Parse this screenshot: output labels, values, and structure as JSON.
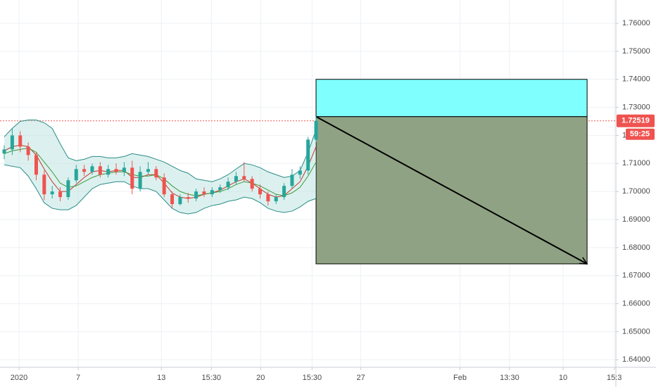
{
  "chart_data": {
    "type": "candlestick",
    "x": [
      0,
      1,
      2,
      3,
      4,
      5,
      6,
      7,
      8,
      9,
      10,
      11,
      12,
      13,
      14,
      15,
      16,
      17,
      18,
      19,
      20,
      21,
      22,
      23,
      24,
      25,
      26,
      27,
      28,
      29,
      30,
      31,
      32,
      33,
      34,
      35,
      36,
      37,
      38,
      39
    ],
    "open": [
      1.7135,
      1.715,
      1.72,
      1.716,
      1.713,
      1.706,
      1.699,
      1.7,
      1.698,
      1.704,
      1.708,
      1.707,
      1.709,
      1.706,
      1.708,
      1.707,
      1.7085,
      1.701,
      1.707,
      1.708,
      1.705,
      1.699,
      1.6955,
      1.698,
      1.6975,
      1.7,
      1.699,
      1.7005,
      1.7015,
      1.7035,
      1.7055,
      1.7045,
      1.701,
      1.699,
      1.6965,
      1.698,
      1.702,
      1.706,
      1.7075,
      1.7185
    ],
    "high": [
      1.7165,
      1.7225,
      1.7215,
      1.7175,
      1.714,
      1.7075,
      1.702,
      1.7015,
      1.705,
      1.7095,
      1.7095,
      1.71,
      1.7105,
      1.7095,
      1.71,
      1.7105,
      1.711,
      1.709,
      1.7105,
      1.709,
      1.7065,
      1.7,
      1.699,
      1.6995,
      1.701,
      1.7015,
      1.7015,
      1.7025,
      1.705,
      1.707,
      1.7105,
      1.7055,
      1.7025,
      1.7,
      1.699,
      1.703,
      1.708,
      1.709,
      1.7195,
      1.7268
    ],
    "low": [
      1.7115,
      1.713,
      1.714,
      1.711,
      1.704,
      1.697,
      1.6975,
      1.6965,
      1.697,
      1.703,
      1.7055,
      1.706,
      1.705,
      1.705,
      1.706,
      1.7055,
      1.699,
      1.7,
      1.706,
      1.704,
      1.698,
      1.694,
      1.695,
      1.696,
      1.6965,
      1.698,
      1.698,
      1.6995,
      1.7005,
      1.7025,
      1.7035,
      1.7,
      1.6975,
      1.695,
      1.6955,
      1.697,
      1.701,
      1.7045,
      1.706,
      1.7175
    ],
    "close": [
      1.715,
      1.72,
      1.716,
      1.713,
      1.706,
      1.699,
      1.7,
      1.698,
      1.704,
      1.708,
      1.707,
      1.709,
      1.706,
      1.708,
      1.707,
      1.7085,
      1.701,
      1.707,
      1.708,
      1.705,
      1.699,
      1.6955,
      1.698,
      1.6975,
      1.7,
      1.699,
      1.7005,
      1.7015,
      1.7035,
      1.7055,
      1.7045,
      1.701,
      1.699,
      1.6965,
      1.698,
      1.702,
      1.706,
      1.7075,
      1.7185,
      1.72519
    ],
    "up_color": "#26a69a",
    "down_color": "#ef5350",
    "band_fill": "#b2dfdb",
    "bands": [
      {
        "color": "#2a8c87",
        "values": [
          1.7195,
          1.7225,
          1.725,
          1.7255,
          1.7255,
          1.7245,
          1.7225,
          1.717,
          1.712,
          1.711,
          1.7115,
          1.7125,
          1.7125,
          1.712,
          1.712,
          1.7125,
          1.7135,
          1.713,
          1.7125,
          1.7115,
          1.7105,
          1.709,
          1.7075,
          1.7065,
          1.7045,
          1.704,
          1.7035,
          1.7045,
          1.706,
          1.708,
          1.71,
          1.7095,
          1.7085,
          1.707,
          1.706,
          1.705,
          1.7055,
          1.7075,
          1.714,
          1.722
        ]
      },
      {
        "color": "#2a8c87",
        "values": [
          1.7095,
          1.709,
          1.7085,
          1.7055,
          1.701,
          1.696,
          1.694,
          1.6935,
          1.6935,
          1.695,
          1.698,
          1.701,
          1.7025,
          1.703,
          1.7035,
          1.7035,
          1.702,
          1.701,
          1.701,
          1.7,
          1.697,
          1.694,
          1.6925,
          1.692,
          1.6925,
          1.694,
          1.695,
          1.6955,
          1.6965,
          1.697,
          1.698,
          1.6975,
          1.696,
          1.694,
          1.693,
          1.6925,
          1.693,
          1.6945,
          1.6965,
          1.6975
        ]
      }
    ],
    "indicators": [
      {
        "color": "#c0392b",
        "values": [
          1.7145,
          1.716,
          1.7165,
          1.716,
          1.713,
          1.708,
          1.7035,
          1.7,
          1.7,
          1.7025,
          1.705,
          1.707,
          1.7075,
          1.707,
          1.7075,
          1.7075,
          1.705,
          1.705,
          1.706,
          1.706,
          1.703,
          1.6995,
          1.698,
          1.6975,
          1.698,
          1.699,
          1.6995,
          1.7005,
          1.702,
          1.7035,
          1.7045,
          1.703,
          1.701,
          1.699,
          1.698,
          1.6985,
          1.701,
          1.7035,
          1.709,
          1.716
        ]
      },
      {
        "color": "#3c9a3c",
        "values": [
          1.7135,
          1.7145,
          1.715,
          1.7155,
          1.714,
          1.7105,
          1.707,
          1.703,
          1.7015,
          1.702,
          1.7035,
          1.705,
          1.706,
          1.7065,
          1.707,
          1.707,
          1.706,
          1.7055,
          1.7055,
          1.706,
          1.7045,
          1.702,
          1.7,
          1.699,
          1.6985,
          1.699,
          1.6995,
          1.7,
          1.701,
          1.7025,
          1.7035,
          1.703,
          1.702,
          1.7005,
          1.699,
          1.6985,
          1.6995,
          1.7015,
          1.7055,
          1.7105
        ]
      }
    ],
    "xlim": [
      -0.53,
      76.5
    ],
    "xticks": [
      {
        "value": 1.85,
        "label": "2020"
      },
      {
        "value": 9.25,
        "label": "7"
      },
      {
        "value": 19.65,
        "label": "13"
      },
      {
        "value": 25.9,
        "label": "15:30"
      },
      {
        "value": 32.07,
        "label": "20"
      },
      {
        "value": 38.5,
        "label": "15:30"
      },
      {
        "value": 44.6,
        "label": "27"
      },
      {
        "value": 57.0,
        "label": "Feb"
      },
      {
        "value": 63.2,
        "label": "13:30"
      },
      {
        "value": 69.9,
        "label": "10"
      },
      {
        "value": 76.3,
        "label": "15:3"
      }
    ],
    "ylim": [
      1.63731,
      1.76829
    ],
    "yticks": [
      {
        "value": 1.76,
        "label": "1.76000"
      },
      {
        "value": 1.75,
        "label": "1.75000"
      },
      {
        "value": 1.74,
        "label": "1.74000"
      },
      {
        "value": 1.73,
        "label": "1.73000"
      },
      {
        "value": 1.72,
        "label": "1.72000"
      },
      {
        "value": 1.71,
        "label": "1.71000"
      },
      {
        "value": 1.7,
        "label": "1.70000"
      },
      {
        "value": 1.69,
        "label": "1.69000"
      },
      {
        "value": 1.68,
        "label": "1.68000"
      },
      {
        "value": 1.67,
        "label": "1.67000"
      },
      {
        "value": 1.66,
        "label": "1.66000"
      },
      {
        "value": 1.65,
        "label": "1.65000"
      },
      {
        "value": 1.64,
        "label": "1.64000"
      }
    ],
    "grid": true,
    "last_price": 1.72519,
    "last_price_color": "#ef5350",
    "countdown": "59:25",
    "position": {
      "start": 39,
      "end": 72.9,
      "entry": 1.7267,
      "upper": 1.74,
      "lower": 1.6742,
      "upper_color": "#80ffff",
      "lower_color": "#8fa384"
    }
  }
}
